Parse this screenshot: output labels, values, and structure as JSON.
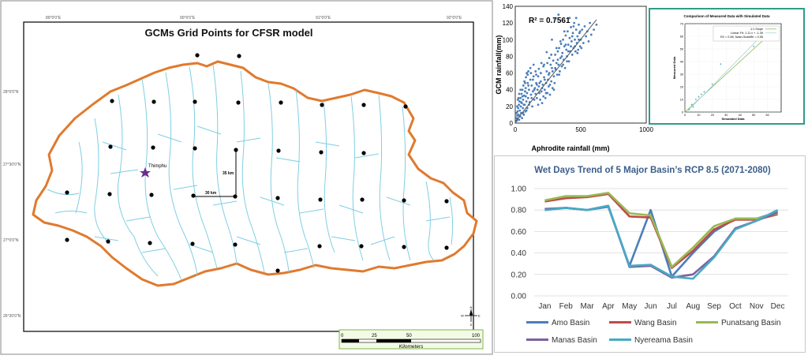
{
  "map": {
    "title": "GCMs Grid Points  for  CFSR model",
    "city_label": "Thimphu",
    "scale_vertical_label": "35 km",
    "scale_horizontal_label": "30 km",
    "top_ticks": [
      "89°0'0\"E",
      "90°0'0\"E",
      "91°0'0\"E",
      "92°0'0\"E"
    ],
    "left_ticks": [
      "28°0'0\"N",
      "27°30'0\"N",
      "27°0'0\"N",
      "26°30'0\"N"
    ],
    "scalebar_ticks": [
      "0",
      "25",
      "50",
      "100"
    ],
    "scalebar_unit": "Kilometers",
    "north_arrow_letters": {
      "n": "N",
      "s": "S",
      "e": "E",
      "w": "W"
    },
    "colors": {
      "border": "#e07a2e",
      "rivers": "#7fcfe2",
      "points": "#000000"
    }
  },
  "chart_data": [
    {
      "type": "scatter",
      "r2_label": "R² = 0.7561",
      "xlabel": "Aphrodite rainfall (mm)",
      "ylabel": "GCM rainfall(mm)",
      "xlim": [
        0,
        1000
      ],
      "ylim": [
        0,
        140
      ],
      "xticks": [
        "0",
        "500",
        "1000"
      ],
      "yticks": [
        "0",
        "20",
        "40",
        "60",
        "80",
        "100",
        "120",
        "140"
      ],
      "trendline": [
        [
          0,
          2
        ],
        [
          620,
          124
        ]
      ],
      "points": [
        [
          5,
          2
        ],
        [
          8,
          6
        ],
        [
          12,
          3
        ],
        [
          15,
          9
        ],
        [
          18,
          14
        ],
        [
          20,
          5
        ],
        [
          22,
          18
        ],
        [
          25,
          10
        ],
        [
          28,
          22
        ],
        [
          30,
          4
        ],
        [
          32,
          26
        ],
        [
          35,
          15
        ],
        [
          38,
          8
        ],
        [
          40,
          30
        ],
        [
          42,
          20
        ],
        [
          45,
          12
        ],
        [
          48,
          35
        ],
        [
          50,
          24
        ],
        [
          52,
          6
        ],
        [
          55,
          40
        ],
        [
          58,
          18
        ],
        [
          60,
          28
        ],
        [
          62,
          45
        ],
        [
          65,
          10
        ],
        [
          68,
          33
        ],
        [
          70,
          50
        ],
        [
          72,
          22
        ],
        [
          75,
          38
        ],
        [
          78,
          14
        ],
        [
          80,
          42
        ],
        [
          82,
          55
        ],
        [
          85,
          26
        ],
        [
          88,
          60
        ],
        [
          90,
          36
        ],
        [
          92,
          18
        ],
        [
          95,
          48
        ],
        [
          98,
          30
        ],
        [
          100,
          62
        ],
        [
          105,
          40
        ],
        [
          110,
          25
        ],
        [
          115,
          52
        ],
        [
          120,
          34
        ],
        [
          125,
          45
        ],
        [
          130,
          20
        ],
        [
          135,
          38
        ],
        [
          140,
          56
        ],
        [
          145,
          28
        ],
        [
          150,
          42
        ],
        [
          155,
          35
        ],
        [
          160,
          48
        ],
        [
          165,
          30
        ],
        [
          170,
          40
        ],
        [
          175,
          22
        ],
        [
          180,
          44
        ],
        [
          185,
          36
        ],
        [
          190,
          28
        ],
        [
          195,
          50
        ],
        [
          200,
          38
        ],
        [
          205,
          24
        ],
        [
          210,
          46
        ],
        [
          215,
          32
        ],
        [
          220,
          55
        ],
        [
          225,
          40
        ],
        [
          230,
          30
        ],
        [
          235,
          48
        ],
        [
          240,
          62
        ],
        [
          245,
          36
        ],
        [
          250,
          52
        ],
        [
          255,
          44
        ],
        [
          260,
          60
        ],
        [
          265,
          34
        ],
        [
          270,
          70
        ],
        [
          275,
          50
        ],
        [
          280,
          66
        ],
        [
          285,
          42
        ],
        [
          290,
          75
        ],
        [
          295,
          56
        ],
        [
          300,
          48
        ],
        [
          305,
          82
        ],
        [
          310,
          64
        ],
        [
          315,
          72
        ],
        [
          320,
          58
        ],
        [
          325,
          86
        ],
        [
          330,
          70
        ],
        [
          335,
          90
        ],
        [
          340,
          62
        ],
        [
          345,
          78
        ],
        [
          350,
          95
        ],
        [
          355,
          68
        ],
        [
          360,
          84
        ],
        [
          365,
          100
        ],
        [
          370,
          76
        ],
        [
          375,
          92
        ],
        [
          380,
          66
        ],
        [
          385,
          105
        ],
        [
          390,
          88
        ],
        [
          395,
          80
        ],
        [
          400,
          110
        ],
        [
          405,
          94
        ],
        [
          410,
          74
        ],
        [
          415,
          102
        ],
        [
          420,
          86
        ],
        [
          425,
          115
        ],
        [
          430,
          98
        ],
        [
          435,
          82
        ],
        [
          440,
          108
        ],
        [
          445,
          90
        ],
        [
          450,
          120
        ],
        [
          455,
          100
        ],
        [
          460,
          86
        ],
        [
          465,
          112
        ],
        [
          470,
          96
        ],
        [
          475,
          104
        ],
        [
          480,
          88
        ],
        [
          485,
          118
        ],
        [
          490,
          108
        ],
        [
          495,
          92
        ],
        [
          500,
          100
        ],
        [
          510,
          112
        ],
        [
          520,
          96
        ],
        [
          530,
          116
        ],
        [
          540,
          104
        ],
        [
          550,
          110
        ],
        [
          560,
          98
        ],
        [
          570,
          120
        ],
        [
          580,
          106
        ],
        [
          600,
          112
        ],
        [
          620,
          118
        ],
        [
          300,
          125
        ],
        [
          330,
          130
        ],
        [
          280,
          100
        ],
        [
          260,
          78
        ],
        [
          240,
          85
        ],
        [
          220,
          70
        ],
        [
          200,
          72
        ],
        [
          180,
          65
        ],
        [
          160,
          58
        ],
        [
          140,
          70
        ],
        [
          120,
          60
        ],
        [
          100,
          45
        ],
        [
          80,
          32
        ],
        [
          60,
          12
        ],
        [
          40,
          40
        ],
        [
          30,
          35
        ],
        [
          20,
          28
        ],
        [
          10,
          12
        ],
        [
          15,
          20
        ],
        [
          25,
          30
        ],
        [
          35,
          8
        ],
        [
          45,
          25
        ],
        [
          55,
          32
        ],
        [
          65,
          22
        ],
        [
          75,
          48
        ],
        [
          85,
          15
        ],
        [
          95,
          58
        ],
        [
          105,
          22
        ],
        [
          115,
          66
        ],
        [
          125,
          30
        ],
        [
          135,
          52
        ],
        [
          145,
          40
        ],
        [
          155,
          62
        ],
        [
          165,
          46
        ],
        [
          175,
          56
        ],
        [
          185,
          48
        ],
        [
          195,
          60
        ],
        [
          205,
          42
        ],
        [
          215,
          68
        ],
        [
          225,
          52
        ],
        [
          235,
          36
        ],
        [
          245,
          72
        ],
        [
          255,
          58
        ],
        [
          265,
          46
        ],
        [
          275,
          82
        ],
        [
          285,
          62
        ],
        [
          295,
          40
        ],
        [
          305,
          66
        ],
        [
          315,
          90
        ],
        [
          325,
          76
        ],
        [
          335,
          58
        ],
        [
          345,
          98
        ],
        [
          355,
          80
        ],
        [
          365,
          70
        ],
        [
          375,
          110
        ],
        [
          385,
          94
        ],
        [
          395,
          74
        ],
        [
          405,
          86
        ],
        [
          415,
          126
        ],
        [
          425,
          92
        ],
        [
          435,
          104
        ],
        [
          445,
          116
        ],
        [
          455,
          92
        ],
        [
          465,
          126
        ],
        [
          475,
          84
        ],
        [
          485,
          100
        ],
        [
          495,
          110
        ],
        [
          505,
          90
        ]
      ]
    },
    {
      "type": "scatter",
      "title": "Comparison of Measured Data with Simulated Data",
      "legend": [
        "1:1 Slope",
        "Linear Fit: 1.11 x + -1.39",
        "R2 = 0.98, Nash-Sutcliffe = 0.95"
      ],
      "xlabel": "Simulated Data",
      "ylabel": "Measured Data",
      "xlim": [
        0,
        70
      ],
      "ylim": [
        0,
        70
      ],
      "xticks": [
        "0",
        "10",
        "20",
        "30",
        "40",
        "50",
        "60"
      ],
      "yticks": [
        "0",
        "10",
        "20",
        "30",
        "40",
        "50",
        "60",
        "70"
      ],
      "points": [
        [
          3,
          2
        ],
        [
          5,
          6
        ],
        [
          6,
          4
        ],
        [
          8,
          10
        ],
        [
          10,
          12
        ],
        [
          12,
          14
        ],
        [
          14,
          16
        ],
        [
          20,
          22
        ],
        [
          26,
          38
        ],
        [
          50,
          52
        ],
        [
          62,
          66
        ]
      ]
    },
    {
      "type": "line",
      "title": "Wet Days Trend of 5 Major Basin’s RCP 8.5 (2071-2080)",
      "categories": [
        "Jan",
        "Feb",
        "Mar",
        "Apr",
        "May",
        "Jun",
        "Jul",
        "Aug",
        "Sep",
        "Oct",
        "Nov",
        "Dec"
      ],
      "ylim": [
        0,
        1.0
      ],
      "yticks": [
        "0.00",
        "0.20",
        "0.40",
        "0.60",
        "0.80",
        "1.00"
      ],
      "series": [
        {
          "name": "Amo Basin",
          "color": "#4a7ebb",
          "values": [
            0.8,
            0.82,
            0.8,
            0.83,
            0.28,
            0.8,
            0.18,
            0.4,
            0.6,
            0.72,
            0.72,
            0.78
          ]
        },
        {
          "name": "Wang Basin",
          "color": "#be4b48",
          "values": [
            0.88,
            0.91,
            0.92,
            0.95,
            0.74,
            0.73,
            0.26,
            0.42,
            0.62,
            0.71,
            0.71,
            0.76
          ]
        },
        {
          "name": "Punatsang Basin",
          "color": "#98b954",
          "values": [
            0.89,
            0.93,
            0.93,
            0.96,
            0.77,
            0.75,
            0.27,
            0.45,
            0.65,
            0.72,
            0.72,
            0.77
          ]
        },
        {
          "name": "Manas Basin",
          "color": "#7d60a0",
          "values": [
            0.81,
            0.82,
            0.8,
            0.84,
            0.27,
            0.28,
            0.17,
            0.2,
            0.37,
            0.63,
            0.7,
            0.78
          ]
        },
        {
          "name": "Nyereama Basin",
          "color": "#46aac5",
          "values": [
            0.8,
            0.82,
            0.8,
            0.84,
            0.28,
            0.29,
            0.18,
            0.16,
            0.36,
            0.62,
            0.7,
            0.8
          ]
        }
      ]
    }
  ]
}
